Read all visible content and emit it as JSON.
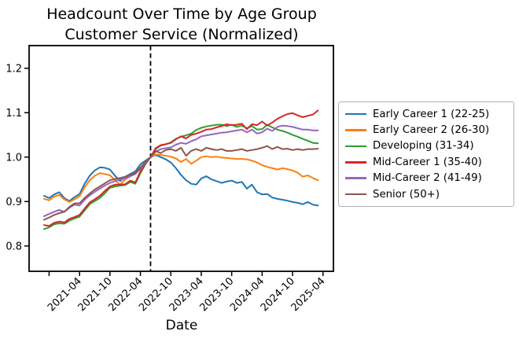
{
  "figure": {
    "title": "Headcount Over Time by Age Group",
    "subtitle": "Customer Service (Normalized)",
    "xlabel": "Date"
  },
  "chart_data": {
    "type": "line",
    "title": "Headcount Over Time by Age Group",
    "subtitle": "Customer Service (Normalized)",
    "xlabel": "Date",
    "ylabel": "",
    "grid": false,
    "legend_position": "right-outside",
    "y_ticks": [
      "0.8",
      "0.9",
      "1.0",
      "1.1",
      "1.2"
    ],
    "ylim": [
      0.743,
      1.251
    ],
    "x_tick_labels": [
      "2021-04",
      "2021-10",
      "2022-04",
      "2022-10",
      "2023-04",
      "2023-10",
      "2024-04",
      "2024-10",
      "2025-04"
    ],
    "unlabeled_x_tick": "2020-10",
    "vline_month": "2022-06",
    "vline_style": "dashed",
    "vline_color": "#000000",
    "normalization_note": "all series equal 1.0 at vline month",
    "x_months": [
      "2020-09",
      "2020-10",
      "2020-11",
      "2020-12",
      "2021-01",
      "2021-02",
      "2021-03",
      "2021-04",
      "2021-05",
      "2021-06",
      "2021-07",
      "2021-08",
      "2021-09",
      "2021-10",
      "2021-11",
      "2021-12",
      "2022-01",
      "2022-02",
      "2022-03",
      "2022-04",
      "2022-05",
      "2022-06",
      "2022-07",
      "2022-08",
      "2022-09",
      "2022-10",
      "2022-11",
      "2022-12",
      "2023-01",
      "2023-02",
      "2023-03",
      "2023-04",
      "2023-05",
      "2023-06",
      "2023-07",
      "2023-08",
      "2023-09",
      "2023-10",
      "2023-11",
      "2023-12",
      "2024-01",
      "2024-02",
      "2024-03",
      "2024-04",
      "2024-05",
      "2024-06",
      "2024-07",
      "2024-08",
      "2024-09",
      "2024-10",
      "2024-11",
      "2024-12",
      "2025-01",
      "2025-02",
      "2025-03"
    ],
    "series": [
      {
        "name": "Early Career 1 (22-25)",
        "color": "#1f77b4",
        "values": [
          0.913,
          0.908,
          0.916,
          0.921,
          0.908,
          0.901,
          0.91,
          0.917,
          0.94,
          0.958,
          0.97,
          0.977,
          0.976,
          0.972,
          0.958,
          0.946,
          0.956,
          0.962,
          0.968,
          0.984,
          0.992,
          1.0,
          1.005,
          1.0,
          0.995,
          0.988,
          0.975,
          0.96,
          0.948,
          0.94,
          0.938,
          0.952,
          0.957,
          0.95,
          0.946,
          0.942,
          0.945,
          0.947,
          0.942,
          0.944,
          0.929,
          0.938,
          0.921,
          0.916,
          0.917,
          0.909,
          0.906,
          0.904,
          0.902,
          0.899,
          0.897,
          0.894,
          0.899,
          0.893,
          0.891
        ]
      },
      {
        "name": "Early Career 2 (26-30)",
        "color": "#ff7f0e",
        "values": [
          0.906,
          0.903,
          0.911,
          0.915,
          0.905,
          0.899,
          0.905,
          0.912,
          0.932,
          0.948,
          0.958,
          0.964,
          0.962,
          0.959,
          0.948,
          0.938,
          0.95,
          0.957,
          0.963,
          0.976,
          0.989,
          1.0,
          1.006,
          1.005,
          1.003,
          1.001,
          0.997,
          0.989,
          0.996,
          0.985,
          0.992,
          1.0,
          1.002,
          1.0,
          1.001,
          0.999,
          0.998,
          0.997,
          0.996,
          0.996,
          0.995,
          0.992,
          0.988,
          0.982,
          0.978,
          0.975,
          0.972,
          0.975,
          0.973,
          0.97,
          0.965,
          0.956,
          0.959,
          0.953,
          0.948
        ]
      },
      {
        "name": "Developing (31-34)",
        "color": "#2ca02c",
        "values": [
          0.838,
          0.842,
          0.849,
          0.851,
          0.85,
          0.857,
          0.862,
          0.866,
          0.88,
          0.894,
          0.901,
          0.908,
          0.919,
          0.931,
          0.934,
          0.936,
          0.937,
          0.944,
          0.94,
          0.964,
          0.984,
          1.0,
          1.018,
          1.026,
          1.029,
          1.033,
          1.041,
          1.046,
          1.049,
          1.053,
          1.061,
          1.066,
          1.069,
          1.071,
          1.073,
          1.073,
          1.07,
          1.073,
          1.068,
          1.071,
          1.065,
          1.07,
          1.062,
          1.063,
          1.073,
          1.067,
          1.062,
          1.059,
          1.055,
          1.05,
          1.046,
          1.041,
          1.037,
          1.032,
          1.031
        ]
      },
      {
        "name": "Mid-Career 1 (35-40)",
        "color": "#d62728",
        "values": [
          0.847,
          0.845,
          0.852,
          0.855,
          0.853,
          0.861,
          0.865,
          0.87,
          0.884,
          0.898,
          0.905,
          0.913,
          0.924,
          0.934,
          0.938,
          0.938,
          0.939,
          0.947,
          0.943,
          0.968,
          0.986,
          1.0,
          1.02,
          1.027,
          1.029,
          1.032,
          1.04,
          1.047,
          1.042,
          1.05,
          1.053,
          1.057,
          1.062,
          1.063,
          1.067,
          1.07,
          1.074,
          1.072,
          1.073,
          1.075,
          1.063,
          1.074,
          1.072,
          1.08,
          1.071,
          1.078,
          1.086,
          1.092,
          1.097,
          1.099,
          1.094,
          1.09,
          1.093,
          1.096,
          1.105
        ]
      },
      {
        "name": "Mid-Career 2 (41-49)",
        "color": "#9467bd",
        "values": [
          0.867,
          0.872,
          0.877,
          0.881,
          0.877,
          0.886,
          0.893,
          0.891,
          0.904,
          0.914,
          0.922,
          0.929,
          0.936,
          0.942,
          0.946,
          0.95,
          0.952,
          0.957,
          0.962,
          0.974,
          0.987,
          1.0,
          1.012,
          1.018,
          1.02,
          1.022,
          1.028,
          1.032,
          1.03,
          1.036,
          1.04,
          1.047,
          1.049,
          1.051,
          1.053,
          1.055,
          1.056,
          1.058,
          1.06,
          1.062,
          1.056,
          1.062,
          1.053,
          1.056,
          1.064,
          1.059,
          1.068,
          1.071,
          1.07,
          1.068,
          1.065,
          1.062,
          1.062,
          1.06,
          1.06
        ]
      },
      {
        "name": "Senior (50+)",
        "color": "#8c564b",
        "values": [
          0.859,
          0.864,
          0.87,
          0.874,
          0.877,
          0.888,
          0.896,
          0.896,
          0.908,
          0.918,
          0.927,
          0.934,
          0.941,
          0.948,
          0.951,
          0.953,
          0.956,
          0.96,
          0.964,
          0.977,
          0.989,
          1.0,
          1.014,
          1.009,
          1.016,
          1.018,
          1.014,
          1.021,
          1.003,
          1.014,
          1.018,
          1.014,
          1.021,
          1.018,
          1.016,
          1.018,
          1.014,
          1.014,
          1.016,
          1.018,
          1.014,
          1.016,
          1.018,
          1.021,
          1.025,
          1.018,
          1.023,
          1.018,
          1.019,
          1.016,
          1.018,
          1.016,
          1.018,
          1.018,
          1.019
        ]
      }
    ]
  }
}
